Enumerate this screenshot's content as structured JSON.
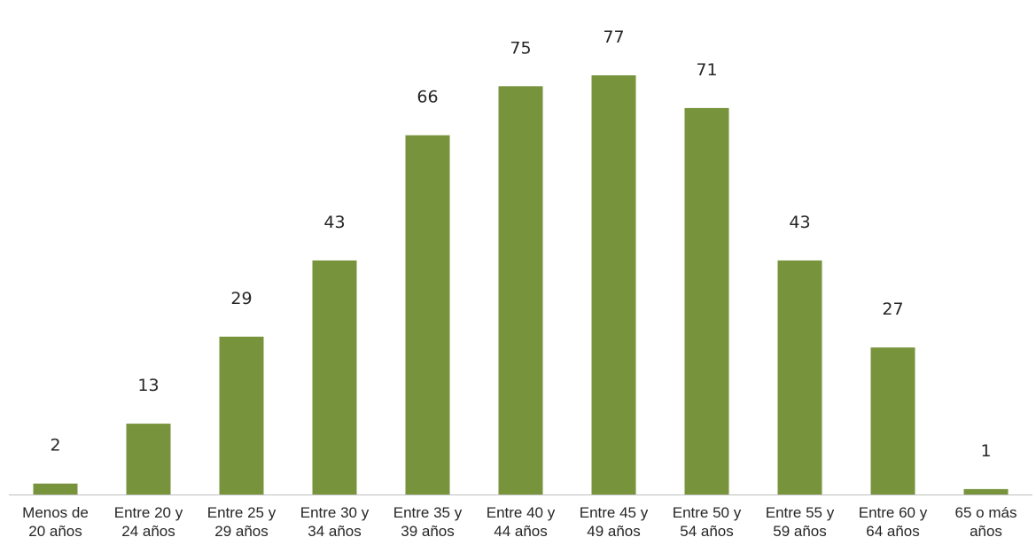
{
  "chart_data": {
    "type": "bar",
    "categories": [
      [
        "Menos de",
        "20 años"
      ],
      [
        "Entre 20 y",
        "24 años"
      ],
      [
        "Entre 25 y",
        "29 años"
      ],
      [
        "Entre 30 y",
        "34 años"
      ],
      [
        "Entre 35 y",
        "39 años"
      ],
      [
        "Entre 40 y",
        "44 años"
      ],
      [
        "Entre 45 y",
        "49 años"
      ],
      [
        "Entre 50 y",
        "54 años"
      ],
      [
        "Entre 55 y",
        "59 años"
      ],
      [
        "Entre 60 y",
        "64 años"
      ],
      [
        "65 o más",
        "años"
      ]
    ],
    "values": [
      2,
      13,
      29,
      43,
      66,
      75,
      77,
      71,
      43,
      27,
      1
    ],
    "data_labels": [
      "2",
      "13",
      "29",
      "43",
      "66",
      "75",
      "77",
      "71",
      "43",
      "27",
      "1"
    ],
    "title": "",
    "xlabel": "",
    "ylabel": "",
    "ylim": [
      0,
      77
    ],
    "grid": false,
    "legend": "none",
    "bar_color": "#77933c"
  }
}
